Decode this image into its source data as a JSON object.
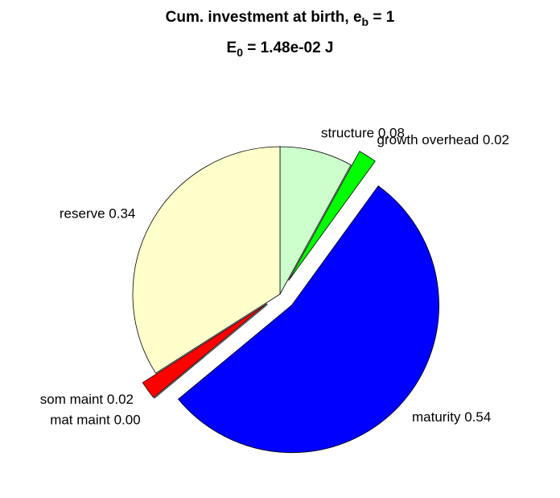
{
  "chart_data": {
    "type": "pie",
    "title": [
      "Cum. investment at birth, e",
      "b",
      " = 1"
    ],
    "subtitle": [
      "E",
      "0",
      " = 1.48e-02 J"
    ],
    "categories": [
      "structure",
      "growth overhead",
      "maturity",
      "mat maint",
      "som maint",
      "reserve"
    ],
    "values": [
      0.08,
      0.02,
      0.54,
      0.0,
      0.02,
      0.34
    ],
    "value_labels": [
      "0.08",
      "0.02",
      "0.54",
      "0.00",
      "0.02",
      "0.34"
    ],
    "colors": [
      "#ccffcc",
      "#00ff00",
      "#0000ff",
      "#ff00ff",
      "#ff0000",
      "#ffffcc"
    ],
    "explode": [
      false,
      true,
      true,
      true,
      true,
      false
    ]
  }
}
